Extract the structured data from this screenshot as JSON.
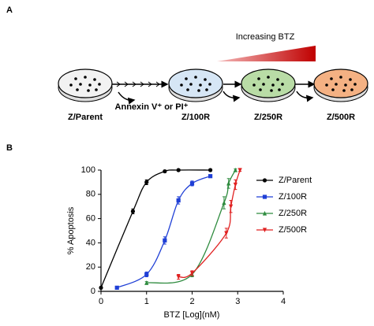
{
  "panel_a": {
    "label": "A",
    "gradient_label": "Increasing BTZ",
    "step_label": "Annexin V⁺ or PI⁺",
    "dishes": [
      {
        "label": "Z/Parent",
        "color": "#f2f2f2"
      },
      {
        "label": "Z/100R",
        "color": "#d6e6f5"
      },
      {
        "label": "Z/250R",
        "color": "#b9dca6"
      },
      {
        "label": "Z/500R",
        "color": "#f4b183"
      }
    ]
  },
  "chart_data": {
    "type": "scatter",
    "panel_label": "B",
    "xlabel": "BTZ [Log](nM)",
    "ylabel": "% Apoptosis",
    "xlim": [
      0,
      4
    ],
    "ylim": [
      0,
      100
    ],
    "xticks": [
      0,
      1,
      2,
      3,
      4
    ],
    "yticks": [
      0,
      20,
      40,
      60,
      80,
      100
    ],
    "legend": "right",
    "series": [
      {
        "name": "Z/Parent",
        "color": "#000000",
        "marker": "circle",
        "x": [
          0,
          0.7,
          1.0,
          1.4,
          1.7,
          2.4
        ],
        "values": [
          3,
          66,
          90,
          99,
          100,
          100
        ],
        "errors": [
          1,
          2,
          2,
          1,
          1,
          1
        ]
      },
      {
        "name": "Z/100R",
        "color": "#1f3fd6",
        "marker": "square",
        "x": [
          0.35,
          1.0,
          1.4,
          1.7,
          2.0,
          2.4
        ],
        "values": [
          3,
          14,
          42,
          75,
          89,
          95
        ],
        "errors": [
          1,
          2,
          3,
          3,
          2,
          1
        ]
      },
      {
        "name": "Z/250R",
        "color": "#2e8b3e",
        "marker": "triangle",
        "x": [
          1.0,
          2.0,
          2.7,
          2.8,
          2.95
        ],
        "values": [
          7,
          14,
          73,
          89,
          100
        ],
        "errors": [
          1,
          2,
          5,
          4,
          1
        ]
      },
      {
        "name": "Z/500R",
        "color": "#e02020",
        "marker": "triangle-down",
        "x": [
          1.7,
          2.0,
          2.75,
          2.85,
          2.95,
          3.05
        ],
        "values": [
          12,
          15,
          48,
          70,
          88,
          100
        ],
        "errors": [
          2,
          2,
          4,
          5,
          4,
          1
        ]
      }
    ]
  }
}
